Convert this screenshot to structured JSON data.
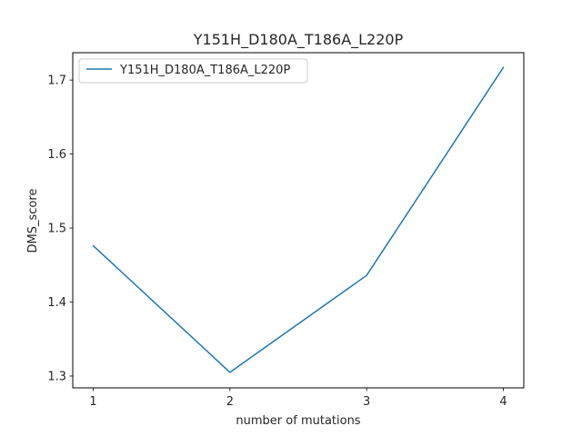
{
  "chart_data": {
    "type": "line",
    "title": "Y151H_D180A_T186A_L220P",
    "xlabel": "number of mutations",
    "ylabel": "DMS_score",
    "x": [
      1,
      2,
      3,
      4
    ],
    "xticks": [
      "1",
      "2",
      "3",
      "4"
    ],
    "yticks": [
      1.3,
      1.4,
      1.5,
      1.6,
      1.7
    ],
    "ytick_labels": [
      "1.3",
      "1.4",
      "1.5",
      "1.6",
      "1.7"
    ],
    "xlim": [
      0.85,
      4.15
    ],
    "ylim": [
      1.284,
      1.737
    ],
    "grid": false,
    "legend_position": "upper-left",
    "series": [
      {
        "name": "Y151H_D180A_T186A_L220P",
        "color": "#1f77b4",
        "values": [
          1.476,
          1.305,
          1.436,
          1.717
        ]
      }
    ]
  }
}
